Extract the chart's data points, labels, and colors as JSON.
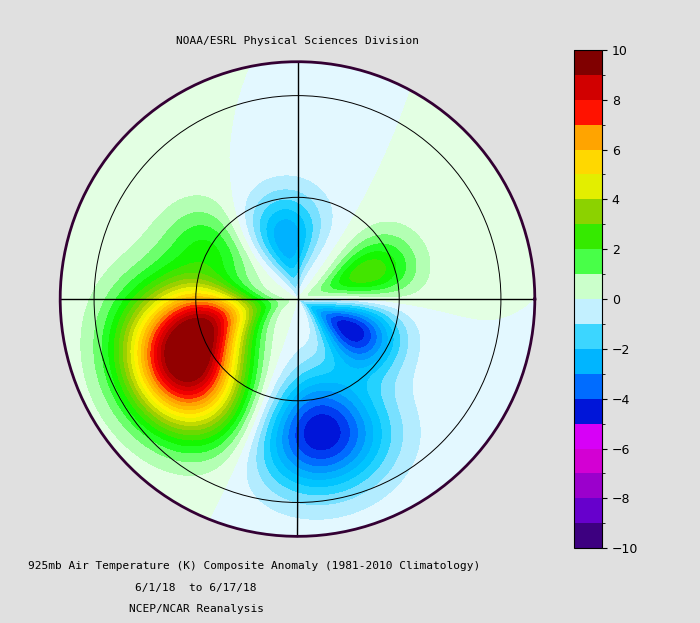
{
  "title_top": "NOAA/ESRL Physical Sciences Division",
  "title_line1": "925mb Air Temperature (K) Composite Anomaly (1981-2010 Climatology)",
  "title_line2": "6/1/18  to 6/17/18",
  "title_line3": "NCEP/NCAR Reanalysis",
  "colorbar_ticks": [
    -10,
    -8,
    -6,
    -4,
    -2,
    0,
    2,
    4,
    6,
    8,
    10
  ],
  "vmin": -10,
  "vmax": 10,
  "colorbar_colors": [
    "#3d007f",
    "#6600cc",
    "#cc00cc",
    "#ff00ff",
    "#0000cc",
    "#0055ff",
    "#00aaff",
    "#00ccff",
    "#ffffff",
    "#ffffff",
    "#00ff00",
    "#55dd00",
    "#aacc00",
    "#ffff00",
    "#ffcc00",
    "#ff9900",
    "#ff6600",
    "#ff0000",
    "#cc0000",
    "#7f0000"
  ],
  "background_color": "#e8e8e8",
  "map_background": "#ffffff",
  "circle_color": "#330033",
  "grid_color": "#000000",
  "land_color": "#ffffff",
  "coast_color": "#330033"
}
